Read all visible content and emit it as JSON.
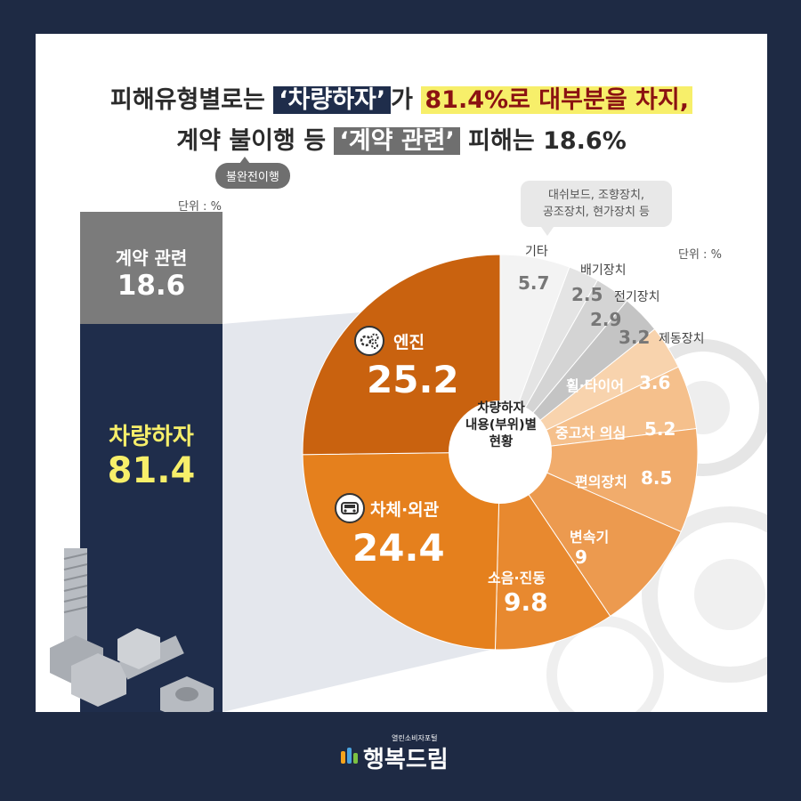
{
  "headline": {
    "line1_a": "피해유형별로는 ",
    "line1_hl": "‘차량하자’",
    "line1_b": "가 ",
    "line1_yellow": "81.4%로 대부분을 차지,",
    "line2_a": "계약 불이행 등 ",
    "line2_hl": "‘계약 관련’",
    "line2_b": " 피해는 18.6%",
    "pill": "불완전이행"
  },
  "left_panel": {
    "unit": "단위 : %",
    "contract_label": "계약 관련",
    "contract_value": "18.6",
    "damage_label": "차량하자",
    "damage_value": "81.4"
  },
  "pie_panel": {
    "unit": "단위 : %",
    "center_line1": "차량하자",
    "center_line2": "내용(부위)별",
    "center_line3": "현황",
    "bubble_line1": "대쉬보드, 조향장치,",
    "bubble_line2": "공조장치, 현가장치 등"
  },
  "colors": {
    "navy": "#1f2d4b",
    "gray_box": "#7b7b7b",
    "yellow": "#f7ef6a",
    "orange_dark": "#c9620f",
    "orange": "#e5801d",
    "orange_light": "#f0a865"
  },
  "chart_data": [
    {
      "type": "bar",
      "title": "",
      "categories": [
        "계약 관련",
        "차량하자"
      ],
      "values": [
        18.6,
        81.4
      ],
      "unit": "%"
    },
    {
      "type": "pie",
      "title": "차량하자 내용(부위)별 현황",
      "unit": "%",
      "slices": [
        {
          "label": "기타",
          "value": 5.7,
          "color": "#f3f3f3"
        },
        {
          "label": "배기장치",
          "value": 2.5,
          "color": "#e4e4e4"
        },
        {
          "label": "전기장치",
          "value": 2.9,
          "color": "#d4d4d4"
        },
        {
          "label": "제동장치",
          "value": 3.2,
          "color": "#c4c4c4"
        },
        {
          "label": "휠·타이어",
          "value": 3.6,
          "color": "#f8d3ad"
        },
        {
          "label": "중고차 의심",
          "value": 5.2,
          "color": "#f5c08c"
        },
        {
          "label": "편의장치",
          "value": 8.5,
          "color": "#f1ac6c"
        },
        {
          "label": "변속기",
          "value": 9.0,
          "color": "#ec9a4f"
        },
        {
          "label": "소음·진동",
          "value": 9.8,
          "color": "#e8892f"
        },
        {
          "label": "차체·외관",
          "value": 24.4,
          "color": "#e5801d"
        },
        {
          "label": "엔진",
          "value": 25.2,
          "color": "#c9620f"
        }
      ]
    }
  ],
  "logo": {
    "name": "행복드림",
    "sub": "열린소비자포털"
  }
}
